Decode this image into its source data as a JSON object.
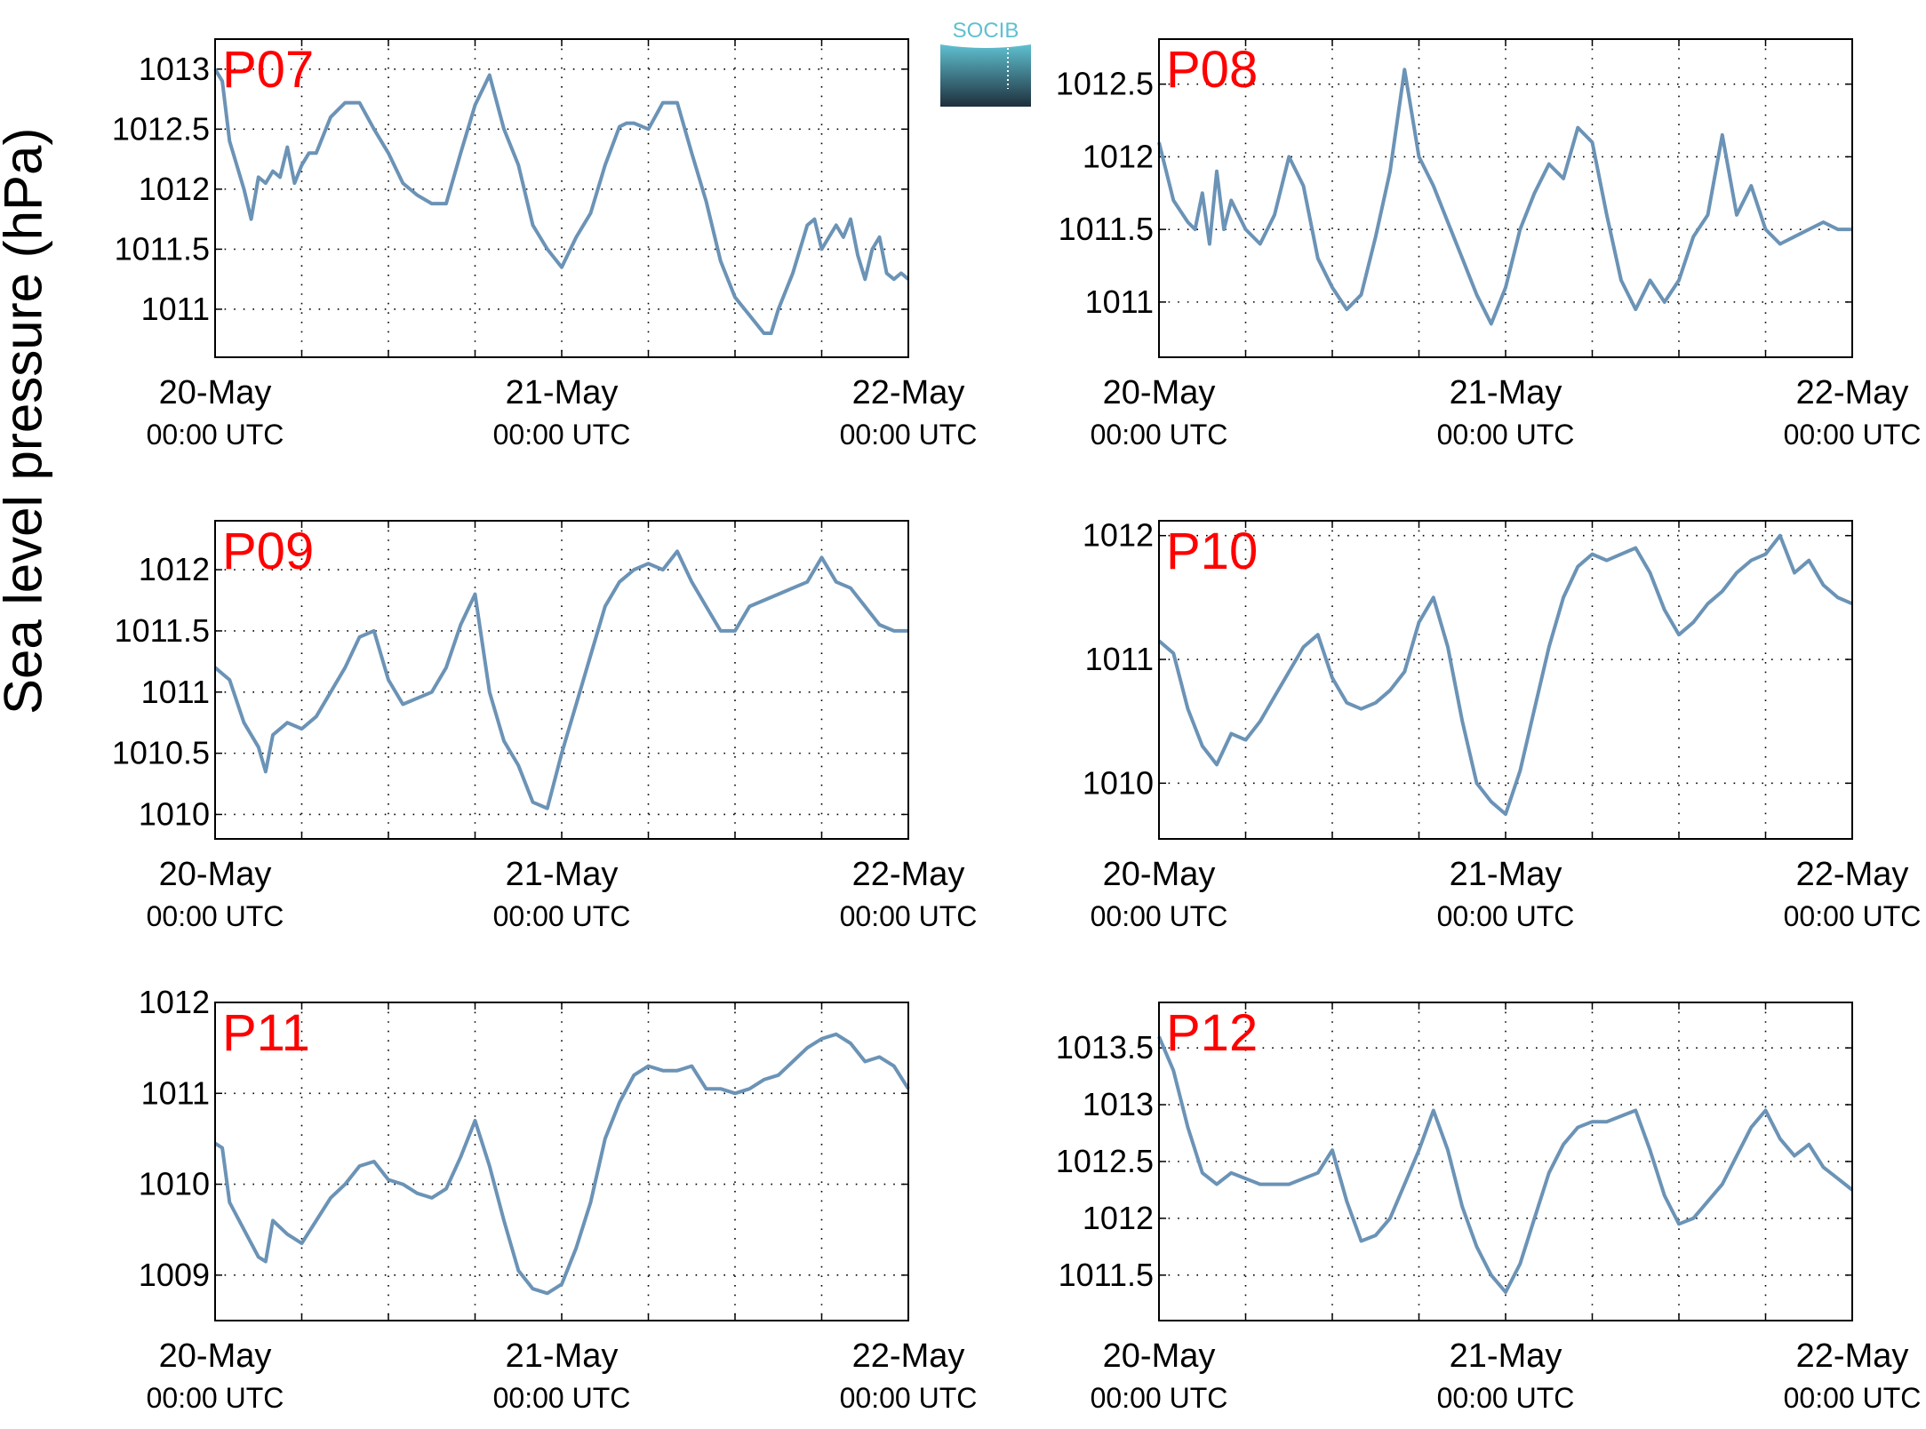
{
  "figure": {
    "ylabel": "Sea level pressure (hPa)",
    "logo_text": "SOCIB",
    "colors": {
      "line": "#6b93b6",
      "title": "#ff0000",
      "grid": "#000000",
      "logo_top": "#5fc0d0",
      "logo_bottom": "#1e2f3c"
    }
  },
  "chart_data": [
    {
      "type": "line",
      "title": "P07",
      "xlabel": "",
      "ylabel": "Sea level pressure (hPa)",
      "xticks": [
        [
          "20-May",
          "00:00 UTC"
        ],
        [
          "21-May",
          "00:00 UTC"
        ],
        [
          "22-May",
          "00:00 UTC"
        ]
      ],
      "xlim": [
        0,
        48
      ],
      "ylim": [
        1010.6,
        1013.25
      ],
      "yticks": [
        1011,
        1011.5,
        1012,
        1012.5,
        1013
      ],
      "ytick_labels": [
        "1011",
        "1011.5",
        "1012",
        "1012.5",
        "1013"
      ],
      "grid": true,
      "series": [
        {
          "x": [
            0,
            0.5,
            1,
            1.5,
            2,
            2.5,
            3,
            3.5,
            4,
            4.5,
            5,
            5.5,
            6,
            6.5,
            7,
            8,
            9,
            10,
            11,
            12,
            13,
            14,
            15,
            16,
            17,
            18,
            19,
            20,
            21,
            21.5,
            22,
            23,
            24,
            25,
            26,
            27,
            28,
            28.5,
            29,
            30,
            31,
            32,
            33,
            34,
            35,
            36,
            37,
            38,
            38.5,
            39,
            40,
            41,
            41.5,
            42,
            43,
            43.5,
            44,
            44.5,
            45,
            45.5,
            46,
            46.5,
            47,
            47.5,
            48
          ],
          "y": [
            1013.0,
            1012.9,
            1012.4,
            1012.2,
            1012.0,
            1011.75,
            1012.1,
            1012.05,
            1012.15,
            1012.1,
            1012.35,
            1012.05,
            1012.2,
            1012.3,
            1012.3,
            1012.6,
            1012.72,
            1012.72,
            1012.5,
            1012.3,
            1012.05,
            1011.95,
            1011.88,
            1011.88,
            1012.3,
            1012.7,
            1012.95,
            1012.5,
            1012.2,
            1011.95,
            1011.7,
            1011.5,
            1011.35,
            1011.6,
            1011.8,
            1012.2,
            1012.52,
            1012.55,
            1012.55,
            1012.5,
            1012.72,
            1012.72,
            1012.3,
            1011.9,
            1011.4,
            1011.1,
            1010.95,
            1010.8,
            1010.8,
            1011.0,
            1011.3,
            1011.7,
            1011.75,
            1011.5,
            1011.7,
            1011.6,
            1011.75,
            1011.45,
            1011.25,
            1011.5,
            1011.6,
            1011.3,
            1011.25,
            1011.3,
            1011.25
          ]
        }
      ]
    },
    {
      "type": "line",
      "title": "P08",
      "xlabel": "",
      "ylabel": "Sea level pressure (hPa)",
      "xticks": [
        [
          "20-May",
          "00:00 UTC"
        ],
        [
          "21-May",
          "00:00 UTC"
        ],
        [
          "22-May",
          "00:00 UTC"
        ]
      ],
      "xlim": [
        0,
        48
      ],
      "ylim": [
        1010.62,
        1012.81
      ],
      "yticks": [
        1011,
        1011.5,
        1012,
        1012.5
      ],
      "ytick_labels": [
        "1011",
        "1011.5",
        "1012",
        "1012.5"
      ],
      "grid": true,
      "series": [
        {
          "x": [
            0,
            1,
            2,
            2.5,
            3,
            3.5,
            4,
            4.5,
            5,
            6,
            7,
            8,
            9,
            10,
            11,
            12,
            13,
            14,
            15,
            16,
            17,
            18,
            19,
            20,
            21,
            22,
            23,
            24,
            25,
            26,
            27,
            28,
            29,
            30,
            31,
            32,
            33,
            34,
            35,
            36,
            37,
            38,
            39,
            40,
            41,
            42,
            43,
            44,
            45,
            46,
            47,
            48
          ],
          "y": [
            1012.1,
            1011.7,
            1011.55,
            1011.5,
            1011.75,
            1011.4,
            1011.9,
            1011.5,
            1011.7,
            1011.5,
            1011.4,
            1011.6,
            1012.0,
            1011.8,
            1011.3,
            1011.1,
            1010.95,
            1011.05,
            1011.45,
            1011.9,
            1012.6,
            1012.0,
            1011.8,
            1011.55,
            1011.3,
            1011.05,
            1010.85,
            1011.1,
            1011.5,
            1011.75,
            1011.95,
            1011.85,
            1012.2,
            1012.1,
            1011.6,
            1011.15,
            1010.95,
            1011.15,
            1011.0,
            1011.15,
            1011.45,
            1011.6,
            1012.15,
            1011.6,
            1011.8,
            1011.5,
            1011.4,
            1011.45,
            1011.5,
            1011.55,
            1011.5,
            1011.5
          ]
        }
      ]
    },
    {
      "type": "line",
      "title": "P09",
      "xlabel": "",
      "ylabel": "Sea level pressure (hPa)",
      "xticks": [
        [
          "20-May",
          "00:00 UTC"
        ],
        [
          "21-May",
          "00:00 UTC"
        ],
        [
          "22-May",
          "00:00 UTC"
        ]
      ],
      "xlim": [
        0,
        48
      ],
      "ylim": [
        1009.8,
        1012.4
      ],
      "yticks": [
        1010,
        1010.5,
        1011,
        1011.5,
        1012
      ],
      "ytick_labels": [
        "1010",
        "1010.5",
        "1011",
        "1011.5",
        "1012"
      ],
      "grid": true,
      "series": [
        {
          "x": [
            0,
            1,
            2,
            3,
            3.5,
            4,
            5,
            6,
            7,
            8,
            9,
            10,
            11,
            12,
            13,
            14,
            15,
            16,
            17,
            18,
            19,
            20,
            21,
            22,
            23,
            24,
            25,
            26,
            27,
            28,
            29,
            30,
            31,
            32,
            33,
            34,
            35,
            36,
            37,
            38,
            39,
            40,
            41,
            42,
            43,
            44,
            45,
            46,
            47,
            48
          ],
          "y": [
            1011.2,
            1011.1,
            1010.75,
            1010.55,
            1010.35,
            1010.65,
            1010.75,
            1010.7,
            1010.8,
            1011.0,
            1011.2,
            1011.45,
            1011.5,
            1011.1,
            1010.9,
            1010.95,
            1011.0,
            1011.2,
            1011.55,
            1011.8,
            1011.0,
            1010.6,
            1010.4,
            1010.1,
            1010.05,
            1010.5,
            1010.9,
            1011.3,
            1011.7,
            1011.9,
            1012.0,
            1012.05,
            1012.0,
            1012.15,
            1011.9,
            1011.7,
            1011.5,
            1011.5,
            1011.7,
            1011.75,
            1011.8,
            1011.85,
            1011.9,
            1012.1,
            1011.9,
            1011.85,
            1011.7,
            1011.55,
            1011.5,
            1011.5
          ]
        }
      ]
    },
    {
      "type": "line",
      "title": "P10",
      "xlabel": "",
      "ylabel": "Sea level pressure (hPa)",
      "xticks": [
        [
          "20-May",
          "00:00 UTC"
        ],
        [
          "21-May",
          "00:00 UTC"
        ],
        [
          "22-May",
          "00:00 UTC"
        ]
      ],
      "xlim": [
        0,
        48
      ],
      "ylim": [
        1009.55,
        1012.12
      ],
      "yticks": [
        1010,
        1011,
        1012
      ],
      "ytick_labels": [
        "1010",
        "1011",
        "1012"
      ],
      "grid": true,
      "series": [
        {
          "x": [
            0,
            1,
            2,
            3,
            4,
            5,
            6,
            7,
            8,
            9,
            10,
            11,
            12,
            13,
            14,
            15,
            16,
            17,
            18,
            19,
            20,
            21,
            22,
            23,
            24,
            25,
            26,
            27,
            28,
            29,
            30,
            31,
            32,
            33,
            34,
            35,
            36,
            37,
            38,
            39,
            40,
            41,
            42,
            43,
            44,
            45,
            46,
            47,
            48
          ],
          "y": [
            1011.15,
            1011.05,
            1010.6,
            1010.3,
            1010.15,
            1010.4,
            1010.35,
            1010.5,
            1010.7,
            1010.9,
            1011.1,
            1011.2,
            1010.85,
            1010.65,
            1010.6,
            1010.65,
            1010.75,
            1010.9,
            1011.3,
            1011.5,
            1011.1,
            1010.5,
            1010.0,
            1009.85,
            1009.75,
            1010.1,
            1010.6,
            1011.1,
            1011.5,
            1011.75,
            1011.85,
            1011.8,
            1011.85,
            1011.9,
            1011.7,
            1011.4,
            1011.2,
            1011.3,
            1011.45,
            1011.55,
            1011.7,
            1011.8,
            1011.85,
            1012.0,
            1011.7,
            1011.8,
            1011.6,
            1011.5,
            1011.45
          ]
        }
      ]
    },
    {
      "type": "line",
      "title": "P11",
      "xlabel": "",
      "ylabel": "Sea level pressure (hPa)",
      "xticks": [
        [
          "20-May",
          "00:00 UTC"
        ],
        [
          "21-May",
          "00:00 UTC"
        ],
        [
          "22-May",
          "00:00 UTC"
        ]
      ],
      "xlim": [
        0,
        48
      ],
      "ylim": [
        1008.5,
        1012.0
      ],
      "yticks": [
        1009,
        1010,
        1011,
        1012
      ],
      "ytick_labels": [
        "1009",
        "1010",
        "1011",
        "1012"
      ],
      "grid": true,
      "series": [
        {
          "x": [
            0,
            0.5,
            1,
            2,
            3,
            3.5,
            4,
            5,
            6,
            7,
            8,
            9,
            10,
            11,
            12,
            13,
            14,
            15,
            16,
            17,
            18,
            19,
            20,
            21,
            22,
            23,
            24,
            25,
            26,
            27,
            28,
            29,
            30,
            31,
            32,
            33,
            34,
            35,
            36,
            37,
            38,
            39,
            40,
            41,
            42,
            43,
            44,
            45,
            46,
            47,
            48
          ],
          "y": [
            1010.45,
            1010.4,
            1009.8,
            1009.5,
            1009.2,
            1009.15,
            1009.6,
            1009.45,
            1009.35,
            1009.6,
            1009.85,
            1010.0,
            1010.2,
            1010.25,
            1010.05,
            1010.0,
            1009.9,
            1009.85,
            1009.95,
            1010.3,
            1010.7,
            1010.2,
            1009.6,
            1009.05,
            1008.85,
            1008.8,
            1008.9,
            1009.3,
            1009.8,
            1010.5,
            1010.9,
            1011.2,
            1011.3,
            1011.25,
            1011.25,
            1011.3,
            1011.05,
            1011.05,
            1011.0,
            1011.05,
            1011.15,
            1011.2,
            1011.35,
            1011.5,
            1011.6,
            1011.65,
            1011.55,
            1011.35,
            1011.4,
            1011.3,
            1011.05
          ]
        }
      ]
    },
    {
      "type": "line",
      "title": "P12",
      "xlabel": "",
      "ylabel": "Sea level pressure (hPa)",
      "xticks": [
        [
          "20-May",
          "00:00 UTC"
        ],
        [
          "21-May",
          "00:00 UTC"
        ],
        [
          "22-May",
          "00:00 UTC"
        ]
      ],
      "xlim": [
        0,
        48
      ],
      "ylim": [
        1011.1,
        1013.9
      ],
      "yticks": [
        1011.5,
        1012,
        1012.5,
        1013,
        1013.5
      ],
      "ytick_labels": [
        "1011.5",
        "1012",
        "1012.5",
        "1013",
        "1013.5"
      ],
      "grid": true,
      "series": [
        {
          "x": [
            0,
            1,
            2,
            3,
            4,
            5,
            6,
            7,
            8,
            9,
            10,
            11,
            12,
            13,
            14,
            15,
            16,
            17,
            18,
            19,
            20,
            21,
            22,
            23,
            24,
            25,
            26,
            27,
            28,
            29,
            30,
            31,
            32,
            33,
            34,
            35,
            36,
            37,
            38,
            39,
            40,
            41,
            42,
            43,
            44,
            45,
            46,
            47,
            48
          ],
          "y": [
            1013.6,
            1013.3,
            1012.8,
            1012.4,
            1012.3,
            1012.4,
            1012.35,
            1012.3,
            1012.3,
            1012.3,
            1012.35,
            1012.4,
            1012.6,
            1012.15,
            1011.8,
            1011.85,
            1012.0,
            1012.3,
            1012.6,
            1012.95,
            1012.6,
            1012.1,
            1011.75,
            1011.5,
            1011.35,
            1011.6,
            1012.0,
            1012.4,
            1012.65,
            1012.8,
            1012.85,
            1012.85,
            1012.9,
            1012.95,
            1012.6,
            1012.2,
            1011.95,
            1012.0,
            1012.15,
            1012.3,
            1012.55,
            1012.8,
            1012.95,
            1012.7,
            1012.55,
            1012.65,
            1012.45,
            1012.35,
            1012.25
          ]
        }
      ]
    }
  ]
}
